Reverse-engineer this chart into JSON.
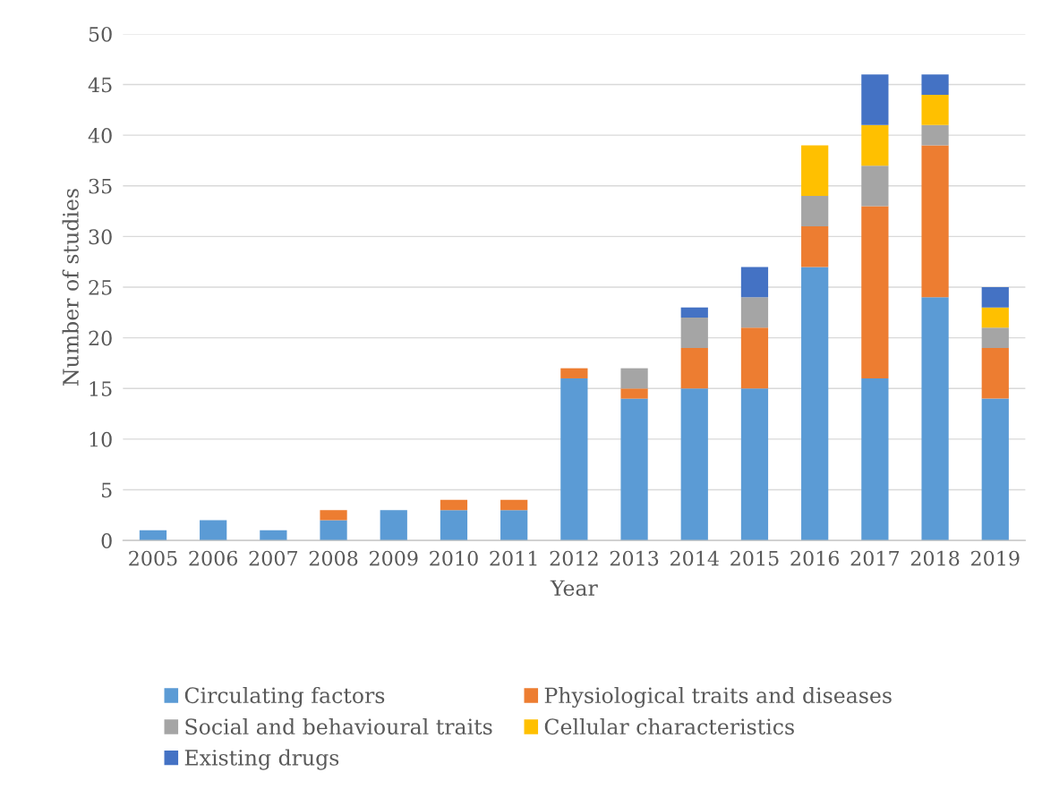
{
  "chart_data": {
    "type": "bar",
    "stacked": true,
    "xlabel": "Year",
    "ylabel": "Number of studies",
    "categories": [
      "2005",
      "2006",
      "2007",
      "2008",
      "2009",
      "2010",
      "2011",
      "2012",
      "2013",
      "2014",
      "2015",
      "2016",
      "2017",
      "2018",
      "2019"
    ],
    "series": [
      {
        "name": "Circulating factors",
        "color": "#5b9bd5",
        "values": [
          1,
          2,
          1,
          2,
          3,
          3,
          3,
          16,
          14,
          15,
          15,
          27,
          16,
          24,
          14
        ]
      },
      {
        "name": "Physiological traits and diseases",
        "color": "#ed7d31",
        "values": [
          0,
          0,
          0,
          1,
          0,
          1,
          1,
          1,
          1,
          4,
          6,
          4,
          17,
          15,
          5
        ]
      },
      {
        "name": "Social and behavioural traits",
        "color": "#a5a5a5",
        "values": [
          0,
          0,
          0,
          0,
          0,
          0,
          0,
          0,
          2,
          3,
          3,
          3,
          4,
          2,
          2
        ]
      },
      {
        "name": "Cellular characteristics",
        "color": "#ffc000",
        "values": [
          0,
          0,
          0,
          0,
          0,
          0,
          0,
          0,
          0,
          0,
          0,
          5,
          4,
          3,
          2
        ]
      },
      {
        "name": "Existing drugs",
        "color": "#4472c4",
        "values": [
          0,
          0,
          0,
          0,
          0,
          0,
          0,
          0,
          0,
          1,
          3,
          0,
          5,
          2,
          2
        ]
      }
    ],
    "ylim": [
      0,
      50
    ],
    "yticks": [
      0,
      5,
      10,
      15,
      20,
      25,
      30,
      35,
      40,
      45,
      50
    ],
    "grid": "y",
    "legend": "bottom"
  }
}
